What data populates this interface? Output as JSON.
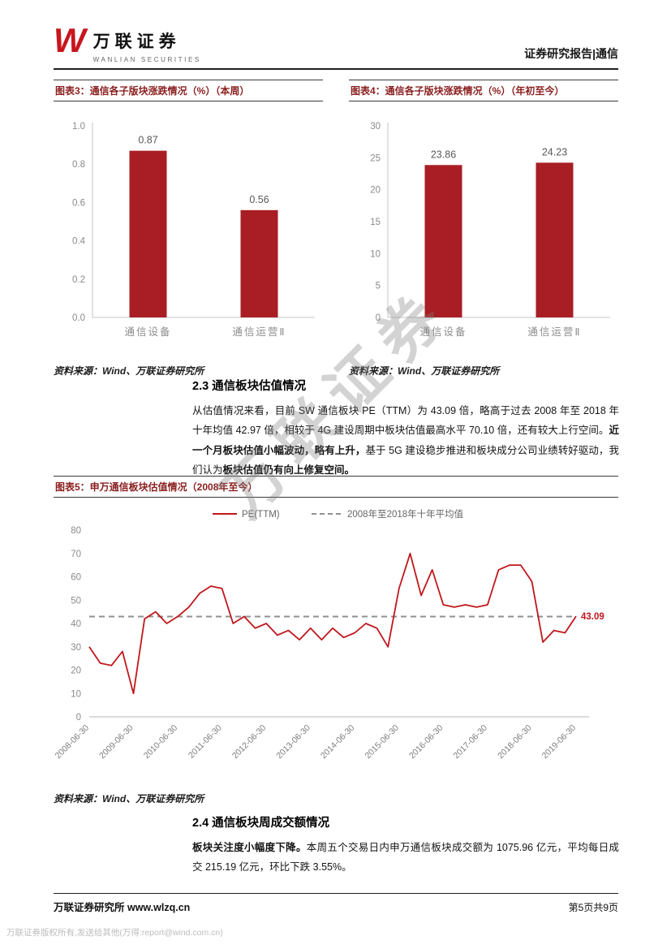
{
  "header": {
    "logo_letter": "W",
    "brand": "万联证券",
    "brand_en": "WANLIAN SECURITIES",
    "report_type": "证券研究报告|通信"
  },
  "watermark": "万联证券",
  "common": {
    "source": "资料来源：Wind、万联证券研究所"
  },
  "chart_data": [
    {
      "id": "figure-3",
      "type": "bar",
      "title": "图表3：通信各子版块涨跌情况（%）（本周）",
      "categories": [
        "通信设备",
        "通信运营Ⅱ"
      ],
      "values": [
        0.87,
        0.56
      ],
      "value_labels": [
        "0.87",
        "0.56"
      ],
      "ylim": [
        0,
        1.0
      ],
      "yticks": [
        "0.0",
        "0.2",
        "0.4",
        "0.6",
        "0.8",
        "1.0"
      ],
      "grid": false,
      "legend": "none"
    },
    {
      "id": "figure-4",
      "type": "bar",
      "title": "图表4：通信各子版块涨跌情况（%）（年初至今）",
      "categories": [
        "通信设备",
        "通信运营Ⅱ"
      ],
      "values": [
        23.86,
        24.23
      ],
      "value_labels": [
        "23.86",
        "24.23"
      ],
      "ylim": [
        0,
        30
      ],
      "yticks": [
        "0",
        "5",
        "10",
        "15",
        "20",
        "25",
        "30"
      ],
      "grid": false,
      "legend": "none"
    },
    {
      "id": "figure-5",
      "type": "line",
      "title": "图表5：申万通信板块估值情况（2008年至今）",
      "series": [
        {
          "name": "PE(TTM)",
          "values": [
            30,
            23,
            22,
            28,
            10,
            42,
            45,
            40,
            43,
            47,
            53,
            56,
            55,
            40,
            43,
            38,
            40,
            35,
            37,
            33,
            38,
            33,
            38,
            34,
            36,
            40,
            38,
            30,
            55,
            70,
            52,
            63,
            48,
            47,
            48,
            47,
            48,
            63,
            65,
            65,
            58,
            32,
            37,
            36,
            43.09
          ]
        }
      ],
      "average_line": {
        "label": "2008年至2018年十年平均值",
        "value": 42.97
      },
      "end_label": "43.09",
      "x_tick_labels": [
        "2008-06-30",
        "2009-06-30",
        "2010-06-30",
        "2011-06-30",
        "2012-06-30",
        "2013-06-30",
        "2014-06-30",
        "2015-06-30",
        "2016-06-30",
        "2017-06-30",
        "2018-06-30",
        "2019-06-30"
      ],
      "ylim": [
        0,
        80
      ],
      "yticks": [
        "0",
        "10",
        "20",
        "30",
        "40",
        "50",
        "60",
        "70",
        "80"
      ],
      "grid": false,
      "legend": "top-center"
    }
  ],
  "section_2_3": {
    "title": "2.3 通信板块估值情况",
    "body": [
      {
        "text": "从估值情况来看，目前 SW 通信板块 PE（TTM）为 43.09 倍，略高于过去 2008 年至 2018 年十年均值 42.97 倍，相较于 4G 建设周期中板块估值最高水平 70.10 倍，还有较大上行空间。",
        "bold": false
      },
      {
        "text": "近一个月板块估值小幅波动，略有上升，",
        "bold": true
      },
      {
        "text": "基于 5G 建设稳步推进和板块成分公司业绩转好驱动，我们认为",
        "bold": false
      },
      {
        "text": "板块估值仍有向上修复空间。",
        "bold": true
      }
    ]
  },
  "section_2_4": {
    "title": "2.4 通信板块周成交额情况",
    "body": [
      {
        "text": "板块关注度小幅度下降。",
        "bold": true
      },
      {
        "text": "本周五个交易日内申万通信板块成交额为 1075.96 亿元，平均每日成交 215.19 亿元，环比下跌 3.55%。",
        "bold": false
      }
    ]
  },
  "footer": {
    "left": "万联证券研究所 www.wlzq.cn",
    "page": "第5页共9页",
    "disclaimer": "万联证券版权所有,发送给其他(万得:report@wind.com.cn)"
  },
  "colors": {
    "bar_red": "#a81e24",
    "line_red": "#c0171c",
    "dash_gray": "#909090",
    "caption_red": "#8b1e1e"
  }
}
